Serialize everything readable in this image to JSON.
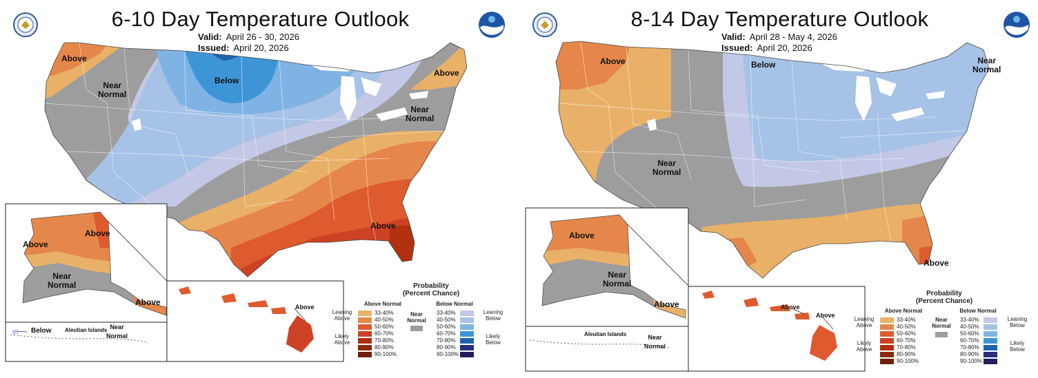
{
  "colors": {
    "near": "#9d9d9d",
    "a33": "#e9b168",
    "a40": "#e5874a",
    "a50": "#de5b2f",
    "a60": "#cd4224",
    "a70": "#b1300f",
    "a80": "#8b2a0c",
    "a90": "#6e1f09",
    "b33": "#c2c8e6",
    "b40": "#a6c2e6",
    "b50": "#7fb3e4",
    "b60": "#3e95d6",
    "b70": "#1f63ad",
    "b80": "#282f7d",
    "b90": "#1f1f5e"
  },
  "panels": [
    {
      "title": "6-10 Day Temperature Outlook",
      "valid_label": "Valid:",
      "valid_value": "April 26 - 30, 2026",
      "issued_label": "Issued:",
      "issued_value": "April 20, 2026",
      "labels": [
        "Above",
        "Near\nNormal",
        "Below",
        "Above",
        "Near\nNormal",
        "Above",
        "Above",
        "Above",
        "Near\nNormal",
        "Above",
        "Above",
        "Below",
        "Near\nNormal"
      ],
      "small_labels": [
        "Aleutian Islands"
      ]
    },
    {
      "title": "8-14 Day Temperature Outlook",
      "valid_label": "Valid:",
      "valid_value": "April 28 - May 4, 2026",
      "issued_label": "Issued:",
      "issued_value": "April 20, 2026",
      "labels": [
        "Above",
        "Below",
        "Near\nNormal",
        "Near\nNormal",
        "Above",
        "Above",
        "Near\nNormal",
        "Above",
        "Above",
        "Above",
        "Near\nNormal"
      ],
      "small_labels": [
        "Aleutian Islands"
      ]
    }
  ],
  "legend": {
    "title": "Probability\n(Percent Chance)",
    "above_header": "Above Normal",
    "below_header": "Below Normal",
    "near_label": "Near\nNormal",
    "leaning_above": "Leaning\nAbove",
    "likely_above": "Likely\nAbove",
    "leaning_below": "Leaning\nBelow",
    "likely_below": "Likely\nBelow",
    "ranges": [
      "33-40%",
      "40-50%",
      "50-60%",
      "60-70%",
      "70-80%",
      "80-90%",
      "90-100%"
    ]
  }
}
